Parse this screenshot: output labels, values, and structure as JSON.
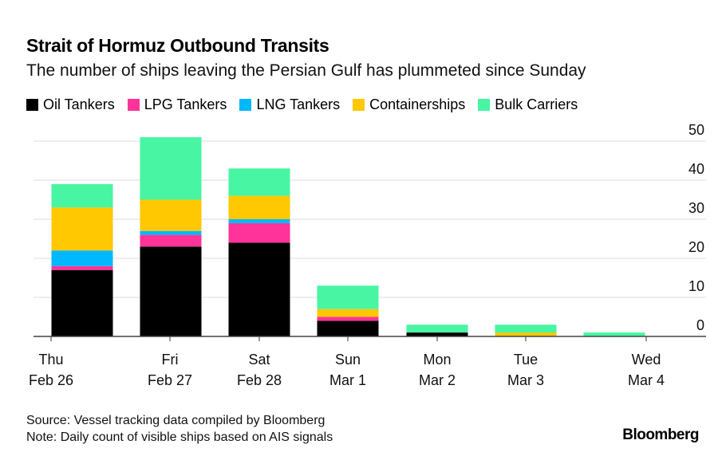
{
  "chart_data": {
    "type": "bar",
    "stacked": true,
    "title": "Strait of Hormuz Outbound Transits",
    "subtitle": "The number of ships leaving the Persian Gulf has plummeted since Sunday",
    "categories": [
      [
        "Thu",
        "Feb 26"
      ],
      [
        "Fri",
        "Feb 27"
      ],
      [
        "Sat",
        "Feb 28"
      ],
      [
        "Sun",
        "Mar 1"
      ],
      [
        "Mon",
        "Mar 2"
      ],
      [
        "Tue",
        "Mar 3"
      ],
      [
        "Wed",
        "Mar 4"
      ]
    ],
    "series": [
      {
        "name": "Oil Tankers",
        "color": "#000000",
        "values": [
          17,
          23,
          24,
          4,
          1,
          0,
          0
        ]
      },
      {
        "name": "LPG Tankers",
        "color": "#ff3399",
        "values": [
          1,
          3,
          5,
          1,
          0,
          0,
          0
        ]
      },
      {
        "name": "LNG Tankers",
        "color": "#00b8ff",
        "values": [
          4,
          1,
          1,
          0,
          0,
          0,
          0
        ]
      },
      {
        "name": "Containerships",
        "color": "#ffc800",
        "values": [
          11,
          8,
          6,
          2,
          0,
          1,
          0
        ]
      },
      {
        "name": "Bulk Carriers",
        "color": "#47f5a3",
        "values": [
          6,
          16,
          7,
          6,
          2,
          2,
          1
        ]
      }
    ],
    "ylim": [
      0,
      50
    ],
    "yticks": [
      0,
      10,
      20,
      30,
      40,
      50
    ],
    "grid": true,
    "yaxis_side": "right",
    "legend_position": "top-left"
  },
  "footer": {
    "source": "Source: Vessel tracking data compiled by Bloomberg",
    "note": "Note: Daily count of visible ships based on AIS signals"
  },
  "logo": "Bloomberg"
}
